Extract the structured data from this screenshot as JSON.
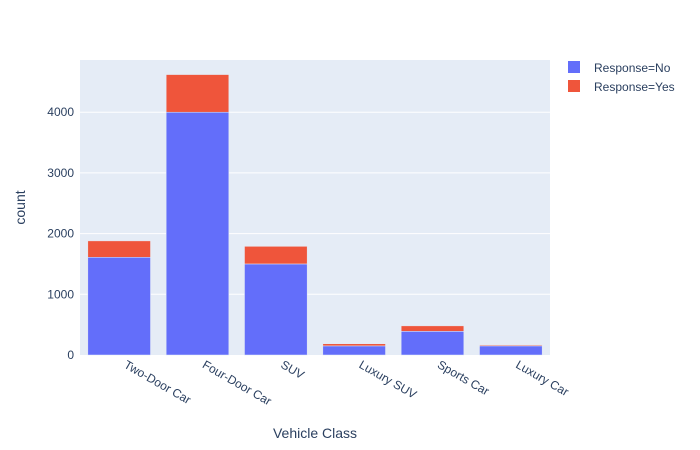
{
  "chart_data": {
    "type": "bar",
    "barmode": "stack",
    "title": "",
    "xlabel": "Vehicle Class",
    "ylabel": "count",
    "categories": [
      "Two-Door Car",
      "Four-Door Car",
      "SUV",
      "Luxury SUV",
      "Sports Car",
      "Luxury Car"
    ],
    "series": [
      {
        "name": "Response=No",
        "color": "#636efa",
        "values": [
          1610,
          4000,
          1500,
          150,
          390,
          150
        ]
      },
      {
        "name": "Response=Yes",
        "color": "#ef553b",
        "values": [
          270,
          620,
          290,
          35,
          90,
          15
        ]
      }
    ],
    "ylim": [
      0,
      4860
    ],
    "yticks": [
      0,
      1000,
      2000,
      3000,
      4000
    ],
    "ytick_labels": [
      "0",
      "1000",
      "2000",
      "3000",
      "4000"
    ],
    "grid": true,
    "legend_position": "top-right",
    "colors": {
      "plot_bg": "#e5ecf6",
      "grid": "#ffffff",
      "text": "#2a3f5f"
    }
  }
}
